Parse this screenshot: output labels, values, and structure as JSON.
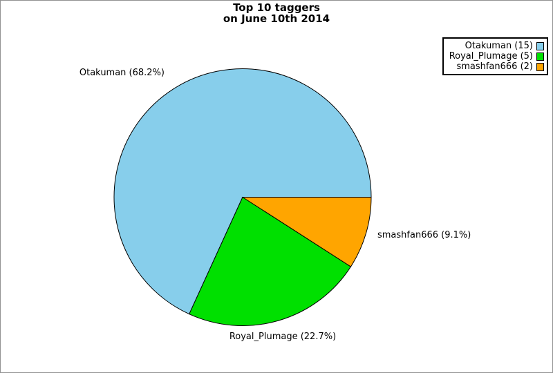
{
  "title": {
    "line1": "Top 10 taggers",
    "line2": "on June 10th 2014"
  },
  "chart_data": {
    "type": "pie",
    "title": "Top 10 taggers on June 10th 2014",
    "categories": [
      "Otakuman",
      "Royal_Plumage",
      "smashfan666"
    ],
    "values": [
      15,
      5,
      2
    ],
    "percentages": [
      68.2,
      22.7,
      9.1
    ],
    "colors": [
      "#87CEEB",
      "#00E000",
      "#FFA500"
    ],
    "outline_color": "#000000",
    "start_angle_deg": 0,
    "direction": "counterclockwise",
    "slice_labels": [
      "Otakuman (68.2%)",
      "Royal_Plumage (22.7%)",
      "smashfan666 (9.1%)"
    ],
    "legend_position": "top-right",
    "legend": {
      "items": [
        {
          "label": "Otakuman (15)"
        },
        {
          "label": "Royal_Plumage (5)"
        },
        {
          "label": "smashfan666 (2)"
        }
      ]
    }
  }
}
